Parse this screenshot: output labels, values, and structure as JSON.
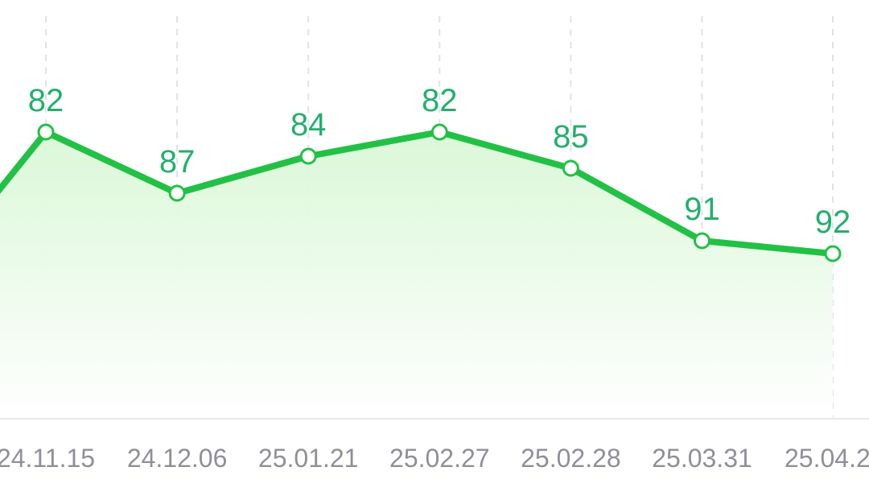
{
  "colors": {
    "line": "#22c145",
    "value_label": "#22b06d",
    "tick_label": "#8f8f98",
    "grid": "#e2e2e2",
    "baseline": "#e8e8ec",
    "fill_top": "#d9f7d6",
    "point_fill": "#ffffff"
  },
  "chart_data": {
    "type": "area",
    "categories": [
      "24.11.15",
      "24.12.06",
      "25.01.21",
      "25.02.27",
      "25.02.28",
      "25.03.31",
      "25.04.2"
    ],
    "values": [
      82,
      87,
      84,
      82,
      85,
      91,
      92
    ],
    "series": [
      {
        "values": [
          82,
          87,
          84,
          82,
          85,
          91,
          92
        ]
      }
    ],
    "title": "",
    "xlabel": "",
    "ylabel": "",
    "yaxis_inverted": true,
    "grid": "vertical-dashed",
    "legend": "none"
  }
}
